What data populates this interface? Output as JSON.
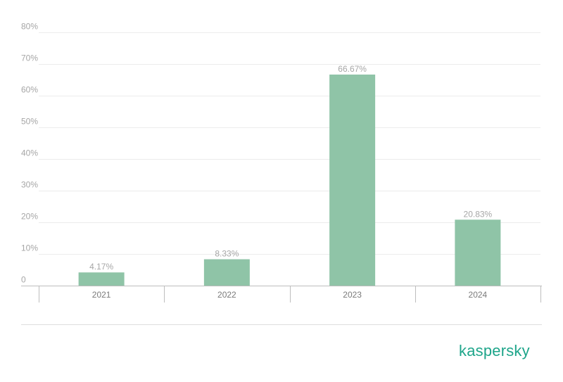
{
  "chart_data": {
    "type": "bar",
    "title": "",
    "xlabel": "",
    "ylabel": "",
    "categories": [
      "2021",
      "2022",
      "2023",
      "2024"
    ],
    "values": [
      4.17,
      8.33,
      66.67,
      20.83
    ],
    "data_labels": [
      "4.17%",
      "8.33%",
      "66.67%",
      "20.83%"
    ],
    "ylim": [
      0,
      80
    ],
    "yticks": [
      0,
      10,
      20,
      30,
      40,
      50,
      60,
      70,
      80
    ],
    "ytick_labels": [
      "0",
      "10%",
      "20%",
      "30%",
      "40%",
      "50%",
      "60%",
      "70%",
      "80%"
    ],
    "bar_color": "#8fc4a7",
    "grid": true,
    "legend": "none"
  },
  "logo": {
    "text": "kaspersky",
    "color": "#1ea58a"
  }
}
